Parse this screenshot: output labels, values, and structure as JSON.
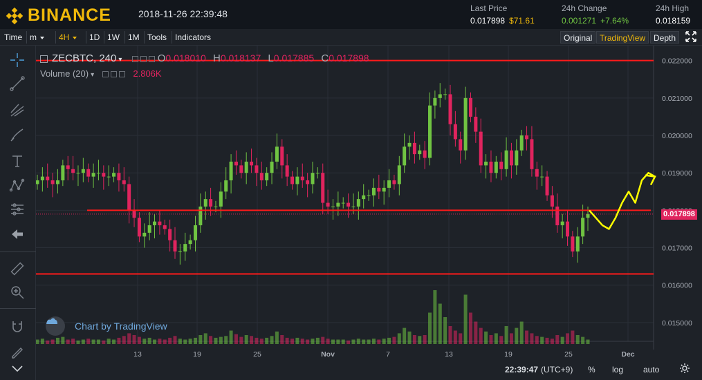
{
  "header": {
    "brand": "BINANCE",
    "datetime": "2018-11-26 22:39:48",
    "last_price_label": "Last Price",
    "last_price": "0.017898",
    "last_price_usd": "$71.61",
    "change_label": "24h Change",
    "change_abs": "0.001271",
    "change_pct": "+7.64%",
    "high_label": "24h High",
    "high_value": "0.018159"
  },
  "toolbar": {
    "time": "Time",
    "interval_m": "m",
    "interval_4h": "4H",
    "interval_1d": "1D",
    "interval_1w": "1W",
    "interval_1M": "1M",
    "tools": "Tools",
    "indicators": "Indicators",
    "original": "Original",
    "tradingview": "TradingView",
    "depth": "Depth"
  },
  "legend": {
    "symbol": "ZECBTC, 240",
    "o_key": "O",
    "o_val": "0.018010",
    "h_key": "H",
    "h_val": "0.018137",
    "l_key": "L",
    "l_val": "0.017885",
    "c_key": "C",
    "c_val": "0.017898",
    "volume_label": "Volume (20)",
    "volume_val": "2.806K"
  },
  "watermark": "Chart by TradingView",
  "price_badge": "0.017898",
  "bottom": {
    "time": "22:39:47",
    "tz": "(UTC+9)",
    "pct": "%",
    "log": "log",
    "auto": "auto"
  },
  "colors": {
    "up": "#70c442",
    "down": "#e0245e",
    "accent": "#f0b90b",
    "level_line": "#ff1a1a",
    "drawing": "#ffff00"
  },
  "chart_data": {
    "type": "candlestick",
    "symbol": "ZECBTC",
    "interval": "240",
    "y_ticks": [
      "0.022000",
      "0.021000",
      "0.020000",
      "0.019000",
      "0.018000",
      "0.017000",
      "0.016000",
      "0.015000"
    ],
    "y_values": [
      0.022,
      0.021,
      0.02,
      0.019,
      0.018,
      0.017,
      0.016,
      0.015
    ],
    "x_ticks": [
      "13",
      "19",
      "25",
      "Nov",
      "7",
      "13",
      "19",
      "25",
      "Dec"
    ],
    "ylim": [
      0.0145,
      0.0224
    ],
    "horizontal_levels": [
      0.022,
      0.018,
      0.0163
    ],
    "last_close": 0.017898,
    "close_path": [
      0.0188,
      0.0189,
      0.0188,
      0.0187,
      0.0188,
      0.0192,
      0.0191,
      0.019,
      0.019,
      0.0191,
      0.0189,
      0.019,
      0.019,
      0.0189,
      0.0189,
      0.019,
      0.0188,
      0.0187,
      0.018,
      0.0178,
      0.0173,
      0.0174,
      0.0176,
      0.0177,
      0.0176,
      0.0175,
      0.0172,
      0.0169,
      0.0169,
      0.0171,
      0.0172,
      0.0176,
      0.0181,
      0.0183,
      0.0181,
      0.0181,
      0.0185,
      0.0188,
      0.0193,
      0.0192,
      0.019,
      0.0193,
      0.0192,
      0.019,
      0.0188,
      0.019,
      0.0193,
      0.0197,
      0.0192,
      0.0189,
      0.0187,
      0.0189,
      0.0188,
      0.0187,
      0.019,
      0.019,
      0.0182,
      0.0181,
      0.0181,
      0.0182,
      0.0182,
      0.0181,
      0.0181,
      0.0183,
      0.0184,
      0.0184,
      0.0186,
      0.0185,
      0.0186,
      0.0188,
      0.0187,
      0.0192,
      0.0197,
      0.0198,
      0.0195,
      0.0196,
      0.0194,
      0.0208,
      0.021,
      0.0211,
      0.0211,
      0.0203,
      0.0199,
      0.0196,
      0.021,
      0.0205,
      0.0201,
      0.0192,
      0.0193,
      0.019,
      0.0193,
      0.0191,
      0.0196,
      0.0192,
      0.0196,
      0.02,
      0.0199,
      0.0191,
      0.0189,
      0.0189,
      0.0184,
      0.0181,
      0.0176,
      0.0177,
      0.0173,
      0.0169,
      0.0173,
      0.0178,
      0.0179
    ],
    "volume_rel": [
      0.05,
      0.06,
      0.04,
      0.05,
      0.07,
      0.08,
      0.05,
      0.06,
      0.04,
      0.05,
      0.06,
      0.05,
      0.05,
      0.04,
      0.06,
      0.05,
      0.07,
      0.09,
      0.12,
      0.1,
      0.08,
      0.06,
      0.07,
      0.05,
      0.06,
      0.05,
      0.07,
      0.09,
      0.06,
      0.05,
      0.06,
      0.07,
      0.1,
      0.12,
      0.09,
      0.07,
      0.08,
      0.09,
      0.15,
      0.11,
      0.08,
      0.1,
      0.09,
      0.07,
      0.06,
      0.07,
      0.09,
      0.14,
      0.1,
      0.07,
      0.06,
      0.07,
      0.06,
      0.05,
      0.06,
      0.07,
      0.08,
      0.06,
      0.05,
      0.05,
      0.05,
      0.04,
      0.05,
      0.06,
      0.05,
      0.05,
      0.06,
      0.05,
      0.06,
      0.07,
      0.08,
      0.12,
      0.18,
      0.14,
      0.1,
      0.09,
      0.1,
      0.35,
      0.6,
      0.45,
      0.3,
      0.2,
      0.15,
      0.12,
      0.55,
      0.35,
      0.25,
      0.18,
      0.14,
      0.1,
      0.12,
      0.09,
      0.2,
      0.12,
      0.18,
      0.25,
      0.15,
      0.12,
      0.09,
      0.08,
      0.07,
      0.06,
      0.1,
      0.08,
      0.12,
      0.15,
      0.1,
      0.08,
      0.05
    ],
    "projection": [
      0.018,
      0.0178,
      0.0176,
      0.0175,
      0.0178,
      0.0182,
      0.0185,
      0.0182,
      0.0188,
      0.019,
      0.0189
    ]
  }
}
